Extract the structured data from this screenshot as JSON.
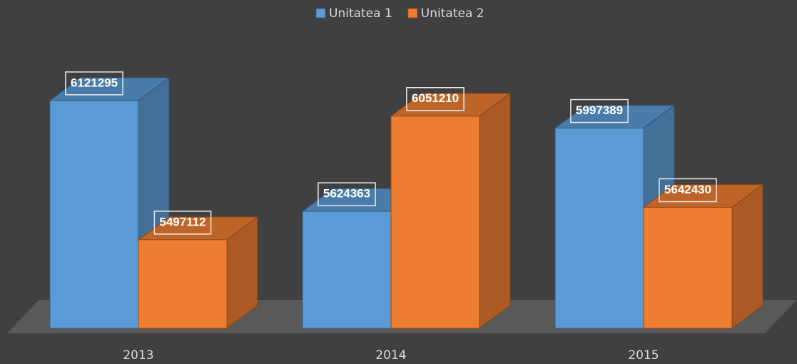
{
  "chart_data": {
    "type": "bar3d",
    "categories": [
      "2013",
      "2014",
      "2015"
    ],
    "series": [
      {
        "name": "Unitatea 1",
        "color": "#5b9bd5",
        "values": [
          6121295,
          5624363,
          5997389
        ]
      },
      {
        "name": "Unitatea 2",
        "color": "#ed7d31",
        "values": [
          5497112,
          6051210,
          5642430
        ]
      }
    ],
    "ylim": [
      5100000,
      6300000
    ]
  }
}
